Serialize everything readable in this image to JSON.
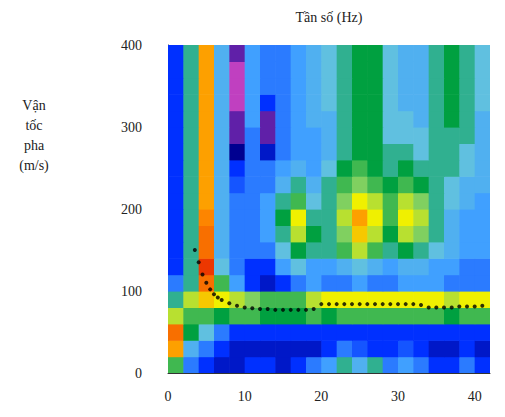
{
  "chart_data": {
    "type": "heatmap",
    "xlabel": "Tần số (Hz)",
    "ylabel": "Vận tốc pha (m/s)",
    "xlim": [
      0,
      42
    ],
    "xticks": [
      0,
      10,
      20,
      30,
      40
    ],
    "ylim": [
      0,
      400
    ],
    "yticks": [
      0,
      100,
      200,
      300,
      400
    ],
    "grid": false,
    "zlim": [
      0,
      1
    ],
    "x": [
      1,
      3,
      5,
      7,
      9,
      11,
      13,
      15,
      17,
      19,
      21,
      23,
      25,
      27,
      29,
      31,
      33,
      35,
      37,
      39,
      41
    ],
    "y": [
      10,
      30,
      50,
      70,
      90,
      110,
      130,
      150,
      170,
      190,
      210,
      230,
      250,
      270,
      290,
      310,
      330,
      350,
      370,
      390
    ],
    "cells": [
      [
        0.6,
        0.3,
        0.2,
        0.15,
        0.15,
        0.2,
        0.2,
        0.15,
        0.2,
        0.3,
        0.35,
        0.5,
        0.4,
        0.5,
        0.3,
        0.35,
        0.3,
        0.2,
        0.2,
        0.3,
        0.2
      ],
      [
        0.85,
        0.4,
        0.3,
        0.2,
        0.15,
        0.15,
        0.15,
        0.15,
        0.15,
        0.15,
        0.2,
        0.3,
        0.25,
        0.2,
        0.2,
        0.25,
        0.2,
        0.15,
        0.15,
        0.2,
        0.15
      ],
      [
        0.9,
        0.55,
        0.45,
        0.3,
        0.2,
        0.2,
        0.2,
        0.2,
        0.2,
        0.2,
        0.2,
        0.2,
        0.2,
        0.2,
        0.2,
        0.2,
        0.2,
        0.2,
        0.2,
        0.2,
        0.2
      ],
      [
        0.7,
        0.6,
        0.6,
        0.55,
        0.6,
        0.6,
        0.55,
        0.55,
        0.55,
        0.6,
        0.55,
        0.6,
        0.6,
        0.6,
        0.6,
        0.6,
        0.6,
        0.6,
        0.55,
        0.6,
        0.6
      ],
      [
        0.5,
        0.7,
        0.8,
        0.75,
        0.7,
        0.65,
        0.6,
        0.6,
        0.6,
        0.7,
        0.75,
        0.75,
        0.75,
        0.75,
        0.75,
        0.75,
        0.75,
        0.75,
        0.7,
        0.75,
        0.75
      ],
      [
        0.3,
        0.5,
        0.9,
        0.6,
        0.35,
        0.2,
        0.15,
        0.2,
        0.3,
        0.35,
        0.3,
        0.3,
        0.35,
        0.3,
        0.3,
        0.35,
        0.35,
        0.35,
        0.3,
        0.3,
        0.3
      ],
      [
        0.2,
        0.5,
        0.95,
        0.45,
        0.3,
        0.2,
        0.2,
        0.35,
        0.45,
        0.35,
        0.35,
        0.4,
        0.45,
        0.4,
        0.35,
        0.4,
        0.4,
        0.35,
        0.35,
        0.3,
        0.3
      ],
      [
        0.2,
        0.5,
        0.9,
        0.4,
        0.3,
        0.3,
        0.3,
        0.45,
        0.55,
        0.5,
        0.5,
        0.6,
        0.7,
        0.6,
        0.5,
        0.55,
        0.5,
        0.45,
        0.4,
        0.35,
        0.35
      ],
      [
        0.2,
        0.5,
        0.9,
        0.4,
        0.3,
        0.3,
        0.35,
        0.5,
        0.7,
        0.55,
        0.5,
        0.65,
        0.8,
        0.7,
        0.55,
        0.7,
        0.65,
        0.5,
        0.4,
        0.35,
        0.35
      ],
      [
        0.2,
        0.5,
        0.88,
        0.4,
        0.3,
        0.3,
        0.35,
        0.55,
        0.75,
        0.5,
        0.5,
        0.7,
        0.85,
        0.75,
        0.6,
        0.75,
        0.7,
        0.5,
        0.4,
        0.35,
        0.35
      ],
      [
        0.2,
        0.5,
        0.85,
        0.4,
        0.3,
        0.3,
        0.35,
        0.5,
        0.6,
        0.45,
        0.5,
        0.65,
        0.75,
        0.7,
        0.6,
        0.7,
        0.65,
        0.5,
        0.45,
        0.4,
        0.35
      ],
      [
        0.2,
        0.5,
        0.85,
        0.4,
        0.25,
        0.3,
        0.3,
        0.4,
        0.5,
        0.4,
        0.5,
        0.6,
        0.65,
        0.6,
        0.55,
        0.6,
        0.55,
        0.5,
        0.45,
        0.4,
        0.4
      ],
      [
        0.2,
        0.5,
        0.85,
        0.4,
        0.2,
        0.3,
        0.3,
        0.35,
        0.4,
        0.35,
        0.45,
        0.55,
        0.6,
        0.55,
        0.5,
        0.55,
        0.5,
        0.5,
        0.5,
        0.45,
        0.4
      ],
      [
        0.2,
        0.5,
        0.85,
        0.4,
        0.1,
        0.3,
        0.15,
        0.3,
        0.35,
        0.35,
        0.4,
        0.5,
        0.55,
        0.55,
        0.5,
        0.5,
        0.45,
        0.5,
        0.5,
        0.45,
        0.4
      ],
      [
        0.2,
        0.5,
        0.85,
        0.4,
        0.05,
        0.3,
        0.05,
        0.3,
        0.35,
        0.35,
        0.4,
        0.5,
        0.55,
        0.55,
        0.45,
        0.45,
        0.45,
        0.5,
        0.5,
        0.5,
        0.4
      ],
      [
        0.2,
        0.5,
        0.85,
        0.4,
        0.05,
        0.35,
        0.05,
        0.3,
        0.35,
        0.4,
        0.4,
        0.5,
        0.55,
        0.55,
        0.45,
        0.45,
        0.4,
        0.5,
        0.55,
        0.5,
        0.4
      ],
      [
        0.2,
        0.5,
        0.85,
        0.4,
        0.0,
        0.35,
        0.2,
        0.3,
        0.35,
        0.4,
        0.45,
        0.5,
        0.55,
        0.55,
        0.45,
        0.4,
        0.4,
        0.5,
        0.55,
        0.5,
        0.45
      ],
      [
        0.2,
        0.5,
        0.85,
        0.4,
        0.0,
        0.35,
        0.3,
        0.3,
        0.35,
        0.4,
        0.45,
        0.5,
        0.55,
        0.55,
        0.45,
        0.4,
        0.4,
        0.5,
        0.55,
        0.5,
        0.45
      ],
      [
        0.2,
        0.5,
        0.85,
        0.4,
        0.0,
        0.35,
        0.3,
        0.3,
        0.35,
        0.4,
        0.45,
        0.5,
        0.55,
        0.55,
        0.45,
        0.4,
        0.4,
        0.5,
        0.55,
        0.5,
        0.45
      ],
      [
        0.2,
        0.5,
        0.85,
        0.4,
        0.05,
        0.35,
        0.3,
        0.3,
        0.35,
        0.4,
        0.45,
        0.5,
        0.55,
        0.55,
        0.45,
        0.4,
        0.4,
        0.5,
        0.55,
        0.5,
        0.45
      ]
    ],
    "curve": {
      "type": "scatter",
      "color": "#000000",
      "marker": "circle",
      "x": [
        3.5,
        4,
        4.5,
        5,
        5.5,
        6,
        6.5,
        7,
        8,
        9,
        10,
        11,
        12,
        13,
        14,
        15,
        16,
        17,
        18,
        19,
        20,
        21,
        22,
        23,
        24,
        25,
        26,
        27,
        28,
        29,
        30,
        31,
        32,
        33,
        34,
        35,
        36,
        37,
        38,
        39,
        40,
        41
      ],
      "values": [
        150,
        135,
        120,
        110,
        102,
        96,
        92,
        89,
        85,
        82,
        80,
        79,
        78,
        78,
        77,
        77,
        77,
        77,
        77,
        78,
        84,
        84,
        84,
        84,
        84,
        84,
        84,
        84,
        84,
        84,
        84,
        84,
        84,
        83,
        80,
        80,
        80,
        80,
        81,
        81,
        81,
        82
      ]
    }
  }
}
